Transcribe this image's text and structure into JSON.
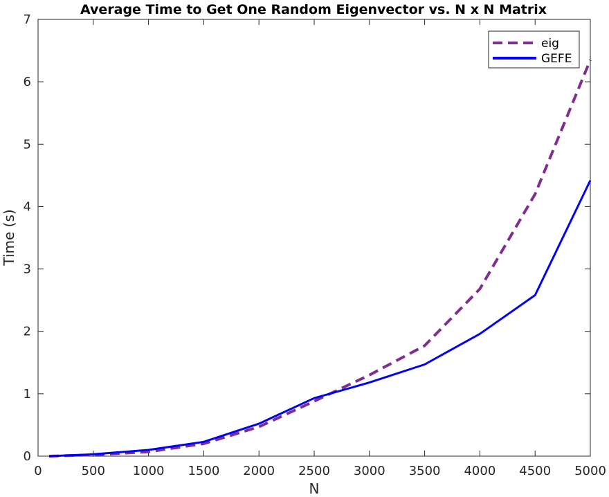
{
  "chart_data": {
    "type": "line",
    "title": "Average Time to Get One Random Eigenvector vs. N x N Matrix",
    "xlabel": "N",
    "ylabel": "Time (s)",
    "xlim": [
      0,
      5000
    ],
    "ylim": [
      0,
      7
    ],
    "xticks": [
      "0",
      "500",
      "1000",
      "1500",
      "2000",
      "2500",
      "3000",
      "3500",
      "4000",
      "4500",
      "5000"
    ],
    "yticks": [
      "0",
      "1",
      "2",
      "3",
      "4",
      "5",
      "6",
      "7"
    ],
    "grid": false,
    "legend_position": "top-right",
    "series": [
      {
        "name": "eig",
        "color": "#7E2F8E",
        "style": "dashed",
        "x": [
          100,
          500,
          1000,
          1500,
          2000,
          2500,
          3000,
          3500,
          4000,
          4500,
          5000
        ],
        "y": [
          0.0,
          0.02,
          0.07,
          0.2,
          0.47,
          0.88,
          1.3,
          1.77,
          2.68,
          4.2,
          6.35
        ]
      },
      {
        "name": "GEFE",
        "color": "#0000FF",
        "style": "solid",
        "x": [
          100,
          500,
          1000,
          1500,
          2000,
          2500,
          3000,
          3500,
          4000,
          4500,
          5000
        ],
        "y": [
          0.0,
          0.03,
          0.1,
          0.23,
          0.52,
          0.93,
          1.18,
          1.47,
          1.96,
          2.58,
          4.42
        ]
      }
    ]
  }
}
